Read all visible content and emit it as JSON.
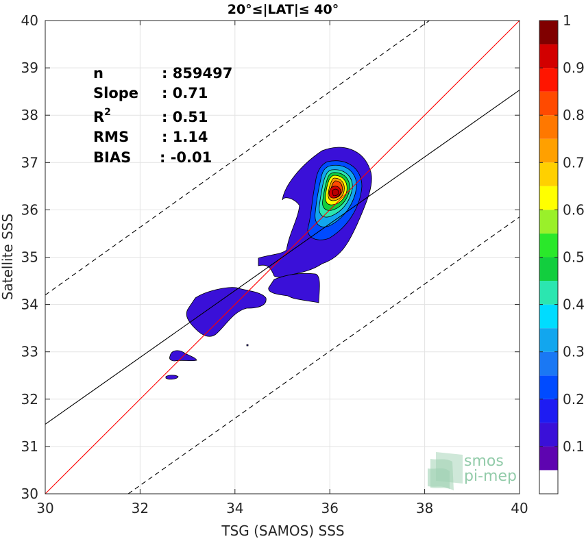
{
  "chart_data": {
    "type": "contour-scatter",
    "title": "20°≤|LAT|≤ 40°",
    "xlabel": "TSG (SAMOS) SSS",
    "ylabel": "Satellite SSS",
    "xlim": [
      30,
      40
    ],
    "ylim": [
      30,
      40
    ],
    "x_ticks": [
      30,
      32,
      34,
      36,
      38,
      40
    ],
    "y_ticks": [
      30,
      31,
      32,
      33,
      34,
      35,
      36,
      37,
      38,
      39,
      40
    ],
    "grid": true,
    "stats": [
      {
        "label": "n",
        "value": ": 859497"
      },
      {
        "label": "Slope",
        "value": ": 0.71"
      },
      {
        "label": "R",
        "sup": "2",
        "value": ": 0.51"
      },
      {
        "label": "RMS",
        "value": ": 1.14"
      },
      {
        "label": "BIAS",
        "value": ": -0.01"
      }
    ],
    "lines": {
      "identity": {
        "x": [
          30,
          40
        ],
        "y": [
          30,
          40
        ],
        "color": "#ff0000"
      },
      "fit": {
        "x": [
          30,
          40
        ],
        "y": [
          31.47,
          38.53
        ],
        "color": "#000000"
      },
      "upper_bound": {
        "x": [
          30,
          38.1
        ],
        "y": [
          34.2,
          40
        ],
        "color": "#000000",
        "style": "dashed"
      },
      "lower_bound": {
        "x": [
          31.75,
          40
        ],
        "y": [
          30,
          35.85
        ],
        "color": "#000000",
        "style": "dashed"
      }
    },
    "density_peak": {
      "x": 36.05,
      "y": 36.3
    },
    "colorbar": {
      "ticks": [
        0.1,
        0.2,
        0.3,
        0.4,
        0.5,
        0.6,
        0.7,
        0.8,
        0.9,
        1
      ],
      "tick_labels": [
        "0.1",
        "0.2",
        "0.3",
        "0.4",
        "0.5",
        "0.6",
        "0.7",
        "0.8",
        "0.9",
        "1"
      ],
      "levels": [
        {
          "from": 0.0,
          "to": 0.05,
          "color": "#ffffff"
        },
        {
          "from": 0.05,
          "to": 0.1,
          "color": "#5e04b0"
        },
        {
          "from": 0.1,
          "to": 0.15,
          "color": "#3a10d8"
        },
        {
          "from": 0.15,
          "to": 0.2,
          "color": "#1e1cf2"
        },
        {
          "from": 0.2,
          "to": 0.25,
          "color": "#004bff"
        },
        {
          "from": 0.25,
          "to": 0.3,
          "color": "#1a78f4"
        },
        {
          "from": 0.3,
          "to": 0.35,
          "color": "#12a6ee"
        },
        {
          "from": 0.35,
          "to": 0.4,
          "color": "#00dcff"
        },
        {
          "from": 0.4,
          "to": 0.45,
          "color": "#2be6b0"
        },
        {
          "from": 0.45,
          "to": 0.5,
          "color": "#12ce3e"
        },
        {
          "from": 0.5,
          "to": 0.55,
          "color": "#2ae82a"
        },
        {
          "from": 0.55,
          "to": 0.6,
          "color": "#9af02a"
        },
        {
          "from": 0.6,
          "to": 0.65,
          "color": "#ffff00"
        },
        {
          "from": 0.65,
          "to": 0.7,
          "color": "#ffd000"
        },
        {
          "from": 0.7,
          "to": 0.75,
          "color": "#ffa000"
        },
        {
          "from": 0.75,
          "to": 0.8,
          "color": "#ff7800"
        },
        {
          "from": 0.8,
          "to": 0.85,
          "color": "#ff4a00"
        },
        {
          "from": 0.85,
          "to": 0.9,
          "color": "#ff1500"
        },
        {
          "from": 0.9,
          "to": 0.95,
          "color": "#d20000"
        },
        {
          "from": 0.95,
          "to": 1.0,
          "color": "#800000"
        }
      ]
    },
    "watermark": {
      "line1": "smos",
      "line2": "pi-mep",
      "color": "#7fc29b"
    }
  }
}
